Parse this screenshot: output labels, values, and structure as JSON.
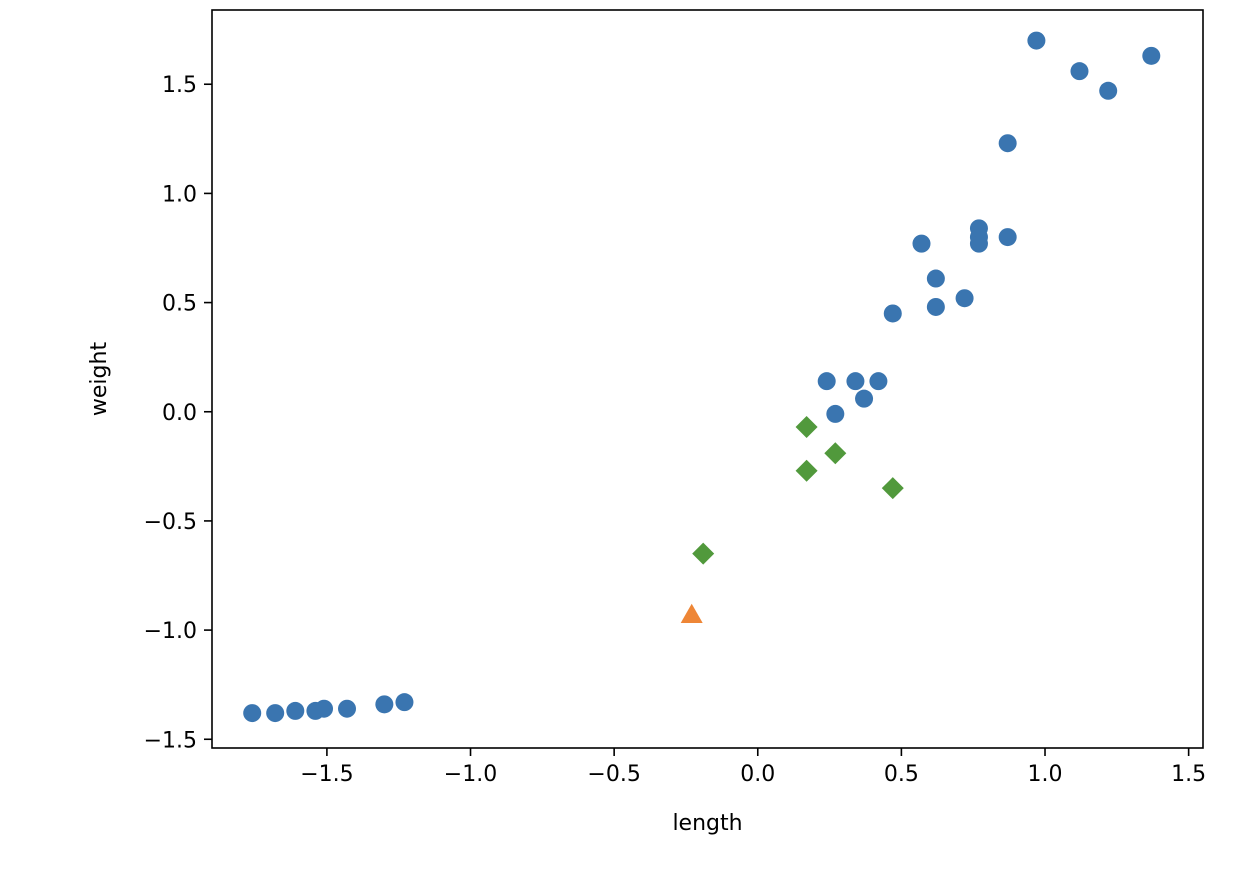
{
  "chart_data": {
    "type": "scatter",
    "title": "",
    "xlabel": "length",
    "ylabel": "weight",
    "xlim": [
      -1.9,
      1.55
    ],
    "ylim": [
      -1.54,
      1.84
    ],
    "grid": false,
    "legend": "none",
    "xticks": [
      -1.5,
      -1.0,
      -0.5,
      0.0,
      0.5,
      1.0,
      1.5
    ],
    "xtick_labels": [
      "−1.5",
      "−1.0",
      "−0.5",
      "0.0",
      "0.5",
      "1.0",
      "1.5"
    ],
    "yticks": [
      -1.5,
      -1.0,
      -0.5,
      0.0,
      0.5,
      1.0,
      1.5
    ],
    "ytick_labels": [
      "−1.5",
      "−1.0",
      "−0.5",
      "0.0",
      "0.5",
      "1.0",
      "1.5"
    ],
    "series": [
      {
        "marker": "circle",
        "color": "#3a75b0",
        "x": [
          -1.76,
          -1.68,
          -1.61,
          -1.54,
          -1.51,
          -1.43,
          -1.3,
          -1.23,
          0.24,
          0.27,
          0.34,
          0.37,
          0.42,
          0.47,
          0.57,
          0.62,
          0.62,
          0.72,
          0.77,
          0.77,
          0.77,
          0.87,
          0.87,
          0.97,
          1.12,
          1.22,
          1.37
        ],
        "y": [
          -1.38,
          -1.38,
          -1.37,
          -1.37,
          -1.36,
          -1.36,
          -1.34,
          -1.33,
          0.14,
          -0.01,
          0.14,
          0.06,
          0.14,
          0.45,
          0.77,
          0.61,
          0.48,
          0.52,
          0.77,
          0.8,
          0.84,
          0.8,
          1.23,
          1.7,
          1.56,
          1.47,
          1.63
        ]
      },
      {
        "marker": "triangle",
        "color": "#ee8636",
        "x": [
          -0.23
        ],
        "y": [
          -0.93
        ]
      },
      {
        "marker": "diamond",
        "color": "#51993c",
        "x": [
          -0.19,
          0.17,
          0.17,
          0.27,
          0.47
        ],
        "y": [
          -0.65,
          -0.07,
          -0.27,
          -0.19,
          -0.35
        ]
      }
    ]
  }
}
